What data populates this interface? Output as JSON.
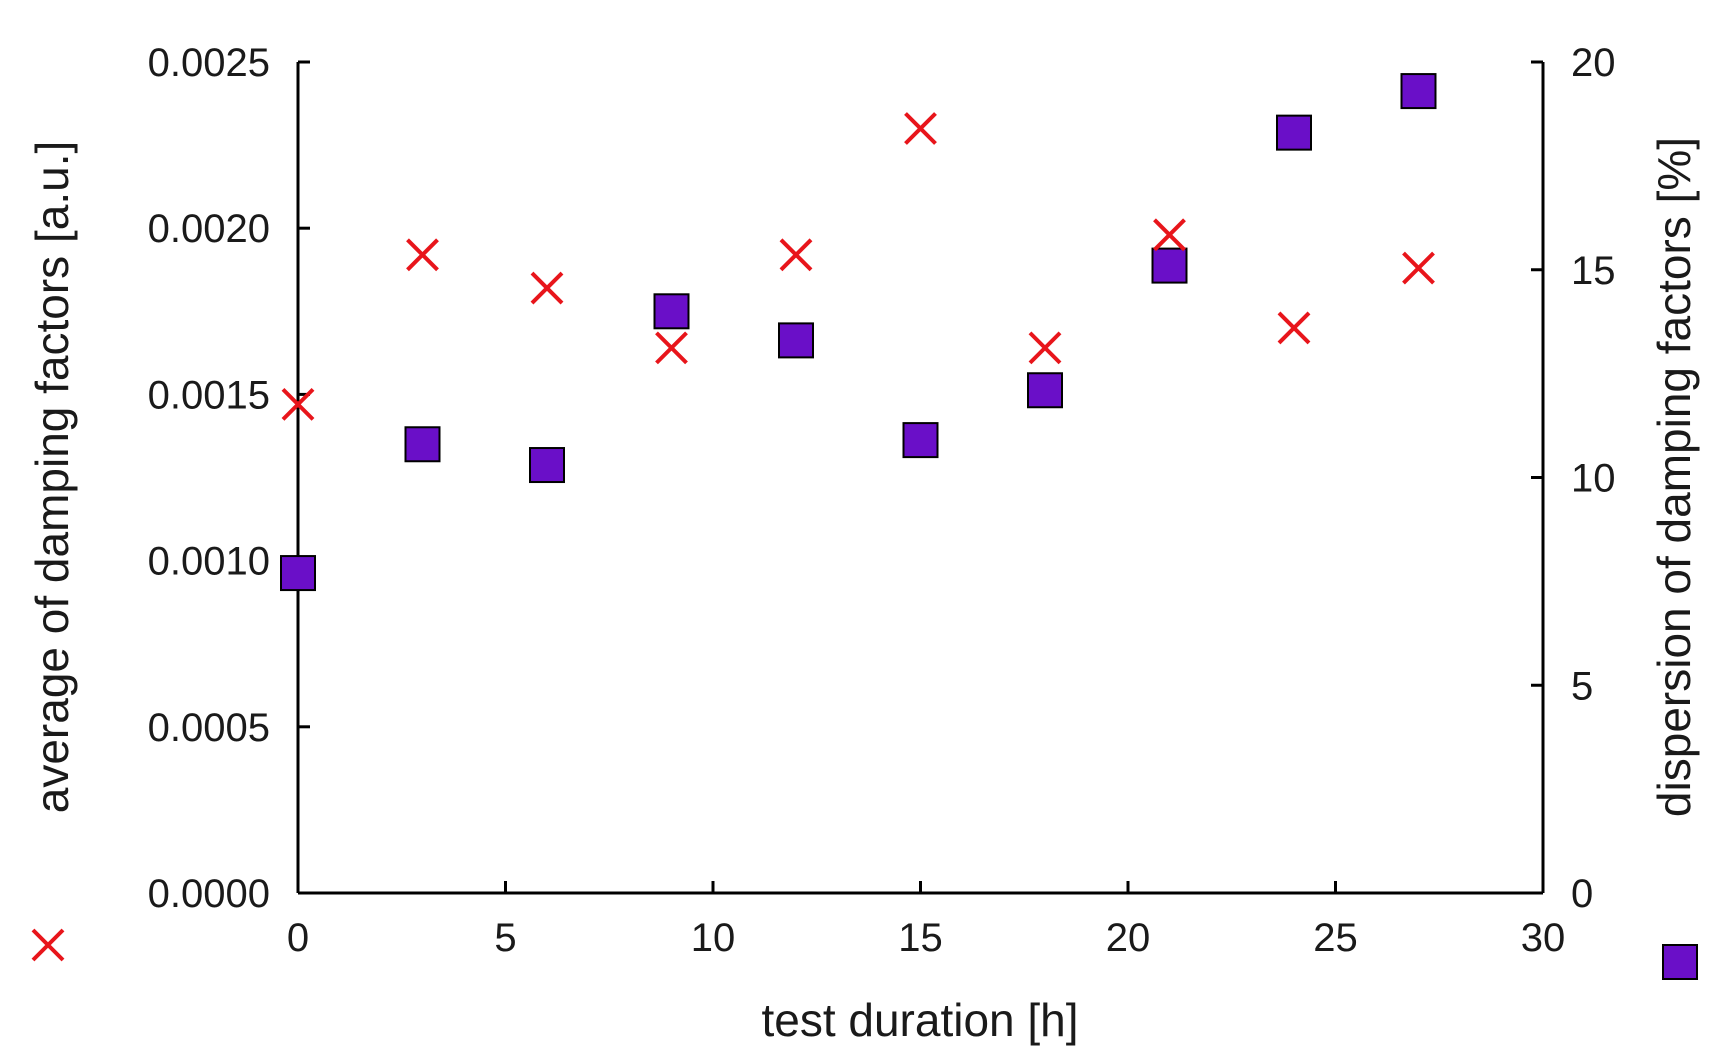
{
  "chart_data": {
    "type": "scatter",
    "title": "",
    "xlabel": "test duration [h]",
    "ylabel_left": "average of damping factors [a.u.]",
    "ylabel_right": "dispersion of damping factors [%]",
    "xlim": [
      0,
      30
    ],
    "ylim_left": [
      0,
      0.0025
    ],
    "ylim_right": [
      0,
      20
    ],
    "x_ticks": [
      "0",
      "5",
      "10",
      "15",
      "20",
      "25",
      "30"
    ],
    "x_tick_values": [
      0,
      5,
      10,
      15,
      20,
      25,
      30
    ],
    "y_left_ticks": [
      "0.0000",
      "0.0005",
      "0.0010",
      "0.0015",
      "0.0020",
      "0.0025"
    ],
    "y_left_tick_values": [
      0,
      0.0005,
      0.001,
      0.0015,
      0.002,
      0.0025
    ],
    "y_right_ticks": [
      "0",
      "5",
      "10",
      "15",
      "20"
    ],
    "y_right_tick_values": [
      0,
      5,
      10,
      15,
      20
    ],
    "grid": false,
    "series": [
      {
        "name": "average of damping factors",
        "axis": "left",
        "marker": "x",
        "color": "#e8151b",
        "x": [
          0,
          3,
          6,
          9,
          12,
          15,
          18,
          21,
          24,
          27
        ],
        "values": [
          0.00147,
          0.00192,
          0.00182,
          0.00164,
          0.00192,
          0.0023,
          0.00164,
          0.00198,
          0.0017,
          0.00188
        ]
      },
      {
        "name": "dispersion of damping factors",
        "axis": "right",
        "marker": "square",
        "color": "#6a0fc8",
        "x": [
          0,
          3,
          6,
          9,
          12,
          15,
          18,
          21,
          24,
          27
        ],
        "values": [
          7.7,
          10.8,
          10.3,
          14.0,
          13.3,
          10.9,
          12.1,
          15.1,
          18.3,
          19.3
        ]
      }
    ]
  }
}
